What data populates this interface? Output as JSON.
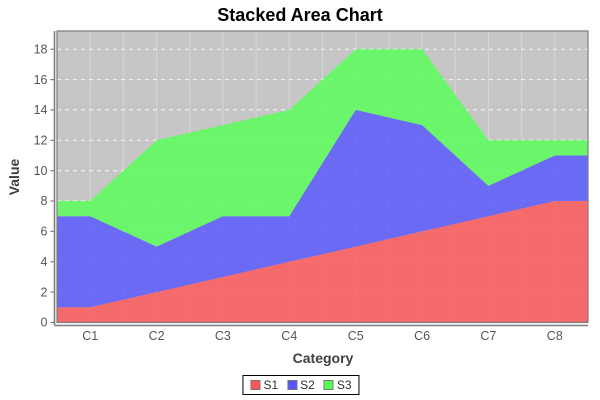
{
  "title": "Stacked Area Chart",
  "chart_data": {
    "type": "area",
    "stacked": true,
    "title": "Stacked Area Chart",
    "xlabel": "Category",
    "ylabel": "Value",
    "categories": [
      "C1",
      "C2",
      "C3",
      "C4",
      "C5",
      "C6",
      "C7",
      "C8"
    ],
    "series": [
      {
        "name": "S1",
        "color": "#ff5555",
        "values": [
          1,
          2,
          3,
          4,
          5,
          6,
          7,
          8
        ]
      },
      {
        "name": "S2",
        "color": "#5555ff",
        "values": [
          6,
          3,
          4,
          3,
          9,
          7,
          2,
          3
        ]
      },
      {
        "name": "S3",
        "color": "#55ff55",
        "values": [
          1,
          7,
          6,
          7,
          4,
          5,
          3,
          1
        ]
      }
    ],
    "stacked_totals": [
      8,
      12,
      13,
      14,
      18,
      18,
      12,
      12
    ],
    "ylim": [
      0,
      19.2
    ],
    "yticks": [
      0,
      2,
      4,
      6,
      8,
      10,
      12,
      14,
      16,
      18
    ],
    "grid": true,
    "plot_bg": "#c6c6c6",
    "grid_color": "#ffffff",
    "axis_color": "#7d7d7d",
    "tick_label_color": "#555555",
    "legend_position": "bottom"
  },
  "legend": {
    "items": [
      {
        "label": "S1",
        "color": "#ff5555"
      },
      {
        "label": "S2",
        "color": "#5555ff"
      },
      {
        "label": "S3",
        "color": "#55ff55"
      }
    ]
  }
}
